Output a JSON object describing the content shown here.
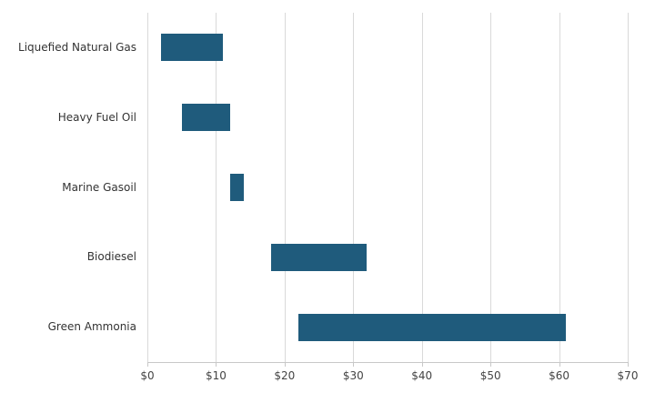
{
  "chart_data": {
    "type": "bar",
    "orientation": "horizontal",
    "variant": "range",
    "title": "",
    "xlabel": "",
    "ylabel": "",
    "categories": [
      "Liquefied Natural Gas",
      "Heavy Fuel Oil",
      "Marine Gasoil",
      "Biodiesel",
      "Green Ammonia"
    ],
    "ranges": [
      [
        2,
        11
      ],
      [
        5,
        12
      ],
      [
        12,
        14
      ],
      [
        18,
        32
      ],
      [
        22,
        61
      ]
    ],
    "xlim": [
      0,
      70
    ],
    "x_ticks": [
      0,
      10,
      20,
      30,
      40,
      50,
      60,
      70
    ],
    "x_tick_labels": [
      "$0",
      "$10",
      "$20",
      "$30",
      "$40",
      "$50",
      "$60",
      "$70"
    ],
    "grid": true,
    "legend": false,
    "bar_color": "#1f5b7c",
    "gridline_color": "#d9d9d9",
    "axis_color": "#c8c8c8",
    "category_label_color": "#333333",
    "tick_label_color": "#444444"
  }
}
